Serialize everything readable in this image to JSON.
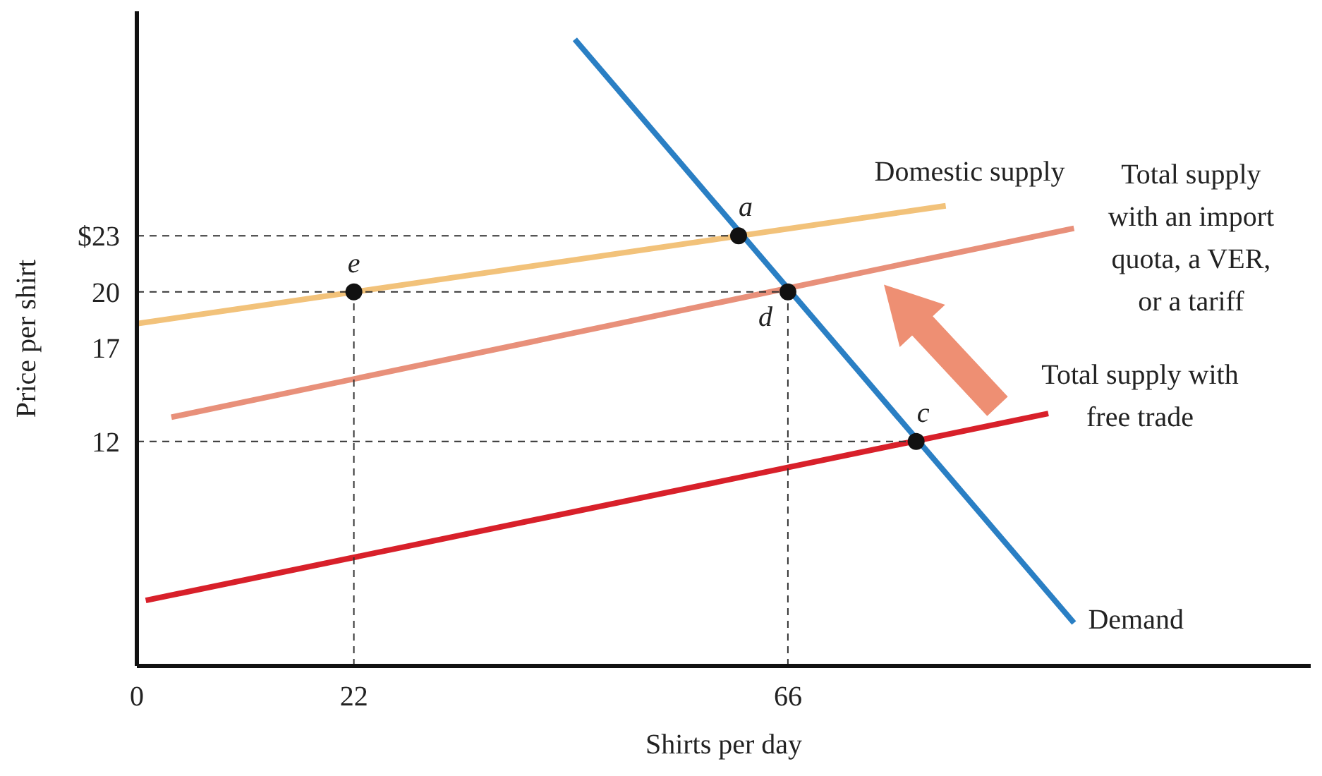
{
  "chart_data": {
    "type": "line",
    "xlabel": "Shirts per day",
    "ylabel": "Price per shirt",
    "xlim": [
      0,
      119
    ],
    "ylim": [
      0,
      35
    ],
    "xticks": [
      0,
      22,
      66
    ],
    "yticks": [
      12,
      17,
      20,
      {
        "value": 23,
        "label": "$23"
      }
    ],
    "marker": "none",
    "line_style": "solid",
    "series": [
      {
        "name": "Domestic supply",
        "color": "#f2c27a",
        "x": [
          0,
          82
        ],
        "values": [
          18.3,
          24.6
        ]
      },
      {
        "name": "Total supply with an import quota, a VER, or a tariff",
        "color": "#e8907a",
        "x": [
          3.5,
          95
        ],
        "values": [
          13.3,
          23.4
        ]
      },
      {
        "name": "Total supply with free trade",
        "color": "#d8202a",
        "x": [
          0.9,
          92.4
        ],
        "values": [
          3.5,
          13.5
        ]
      },
      {
        "name": "Demand",
        "color": "#2a7fc4",
        "x": [
          44.4,
          95
        ],
        "values": [
          33.5,
          2.3
        ]
      },
      {
        "type": "line",
        "color": "#333333",
        "line_style": "dashed",
        "x": [
          0,
          61
        ],
        "values": [
          23,
          23
        ]
      },
      {
        "type": "line",
        "color": "#333333",
        "line_style": "dashed",
        "x": [
          0,
          66
        ],
        "values": [
          20,
          20
        ]
      },
      {
        "type": "line",
        "color": "#333333",
        "line_style": "dashed",
        "x": [
          0,
          79
        ],
        "values": [
          12,
          12
        ]
      },
      {
        "type": "line",
        "color": "#333333",
        "line_style": "dashed",
        "x": [
          22,
          22
        ],
        "values": [
          0,
          20
        ]
      },
      {
        "type": "line",
        "color": "#333333",
        "line_style": "dashed",
        "x": [
          66,
          66
        ],
        "values": [
          0,
          20
        ]
      },
      {
        "type": "scatter",
        "color": "#111111",
        "marker": "circle",
        "x": [
          22,
          61,
          66,
          79
        ],
        "values": [
          20,
          23,
          20,
          12
        ]
      }
    ],
    "annotations": [
      {
        "text": "e",
        "x": 22,
        "y": 20
      },
      {
        "text": "a",
        "x": 61,
        "y": 23
      },
      {
        "text": "d",
        "x": 66,
        "y": 20
      },
      {
        "text": "c",
        "x": 79,
        "y": 12
      }
    ]
  }
}
